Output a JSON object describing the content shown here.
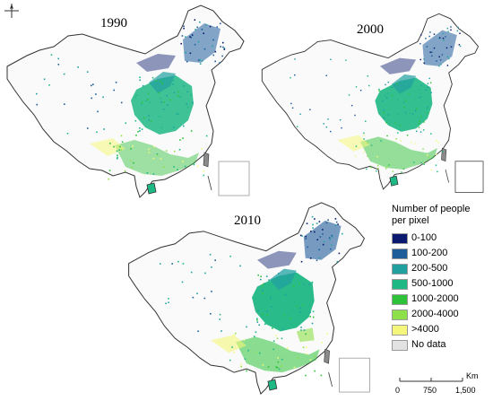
{
  "maps": [
    {
      "year": "1990"
    },
    {
      "year": "2000"
    },
    {
      "year": "2010"
    }
  ],
  "legend": {
    "title_line1": "Number of people",
    "title_line2": "per pixel",
    "classes": [
      {
        "label": "0-100",
        "color": "#0b1a6e"
      },
      {
        "label": "100-200",
        "color": "#1f5c9a"
      },
      {
        "label": "200-500",
        "color": "#21a0a0"
      },
      {
        "label": "500-1000",
        "color": "#1db884"
      },
      {
        "label": "1000-2000",
        "color": "#2ec23a"
      },
      {
        "label": "2000-4000",
        "color": "#8de04a"
      },
      {
        "label": ">4000",
        "color": "#f4f77a"
      },
      {
        "label": "No data",
        "color": "#e2e2e2"
      }
    ]
  },
  "scale": {
    "unit": "Km",
    "ticks": [
      "0",
      "750",
      "1,500"
    ]
  },
  "icons": {
    "compass": "north-arrow-icon"
  }
}
